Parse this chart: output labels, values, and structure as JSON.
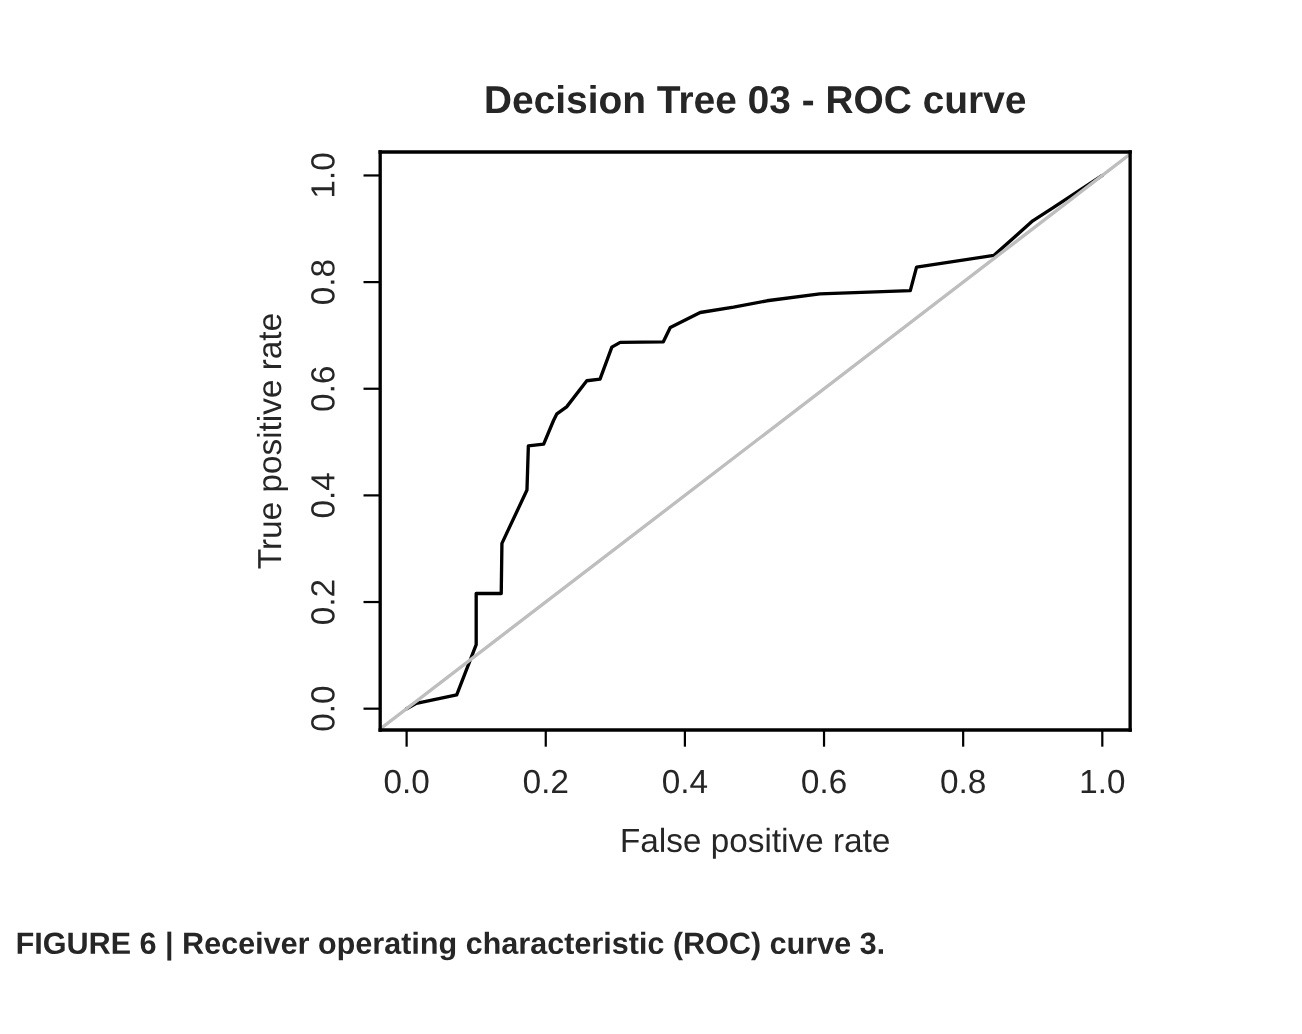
{
  "chart_data": {
    "type": "line",
    "title": "Decision Tree 03 - ROC curve",
    "xlabel": "False positive rate",
    "ylabel": "True positive rate",
    "xlim": [
      -0.038,
      1.04
    ],
    "ylim": [
      -0.04,
      1.044
    ],
    "xticks": [
      {
        "value": 0,
        "label": "0.0"
      },
      0.2,
      0.4,
      0.6,
      0.8,
      {
        "value": 1,
        "label": "1.0"
      }
    ],
    "yticks": [
      {
        "value": 0,
        "label": "0.0"
      },
      0.2,
      0.4,
      0.6,
      0.8,
      {
        "value": 1,
        "label": "1.0"
      }
    ],
    "series": [
      {
        "color": "#000000",
        "x": [
          0,
          0.014,
          0.072,
          0.1,
          0.1,
          0.136,
          0.137,
          0.173,
          0.175,
          0.197,
          0.211,
          0.216,
          0.23,
          0.259,
          0.278,
          0.295,
          0.307,
          0.369,
          0.379,
          0.422,
          0.47,
          0.518,
          0.594,
          0.724,
          0.733,
          0.844,
          0.9,
          0.93,
          1.0
        ],
        "values": [
          0,
          0.01,
          0.026,
          0.12,
          0.216,
          0.216,
          0.31,
          0.41,
          0.493,
          0.496,
          0.54,
          0.553,
          0.566,
          0.615,
          0.618,
          0.678,
          0.687,
          0.688,
          0.715,
          0.743,
          0.753,
          0.765,
          0.778,
          0.784,
          0.828,
          0.85,
          0.915,
          0.94,
          1.0
        ]
      },
      {
        "color": "#bebebe",
        "x": [
          -0.038,
          1.04
        ],
        "values": [
          -0.038,
          1.04
        ]
      }
    ],
    "grid": false,
    "marker": "none",
    "line_style": "solid",
    "annotations": [
      "FIGURE 6 | Receiver operating characteristic (ROC) curve 3."
    ]
  }
}
